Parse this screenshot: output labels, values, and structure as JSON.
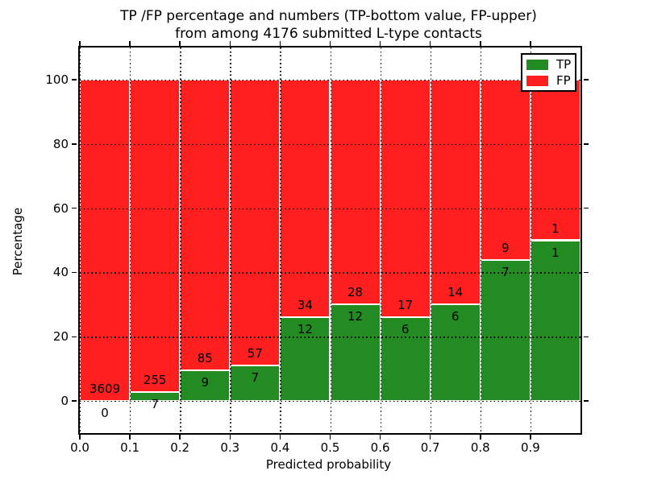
{
  "title": {
    "line1": "TP /FP percentage and numbers (TP-bottom value, FP-upper)",
    "line2": "from among 4176 submitted L-type contacts"
  },
  "chart_data": {
    "type": "bar",
    "stacked": true,
    "normalized": "each bin scaled to 100%, TP on bottom, FP on top",
    "title": "TP /FP percentage and numbers (TP-bottom value, FP-upper) from among 4176 submitted L-type contacts",
    "xlabel": "Predicted probability",
    "ylabel": "Percentage",
    "bin_edges": [
      0.0,
      0.1,
      0.2,
      0.3,
      0.4,
      0.5,
      0.6,
      0.7,
      0.8,
      0.9,
      1.0
    ],
    "xtick_labels": [
      "0.0",
      "0.1",
      "0.2",
      "0.3",
      "0.4",
      "0.5",
      "0.6",
      "0.7",
      "0.8",
      "0.9"
    ],
    "ytick_labels": [
      "0",
      "20",
      "40",
      "60",
      "80",
      "100"
    ],
    "ytick_values": [
      0,
      20,
      40,
      60,
      80,
      100
    ],
    "xlim": [
      0.0,
      1.0
    ],
    "ylim": [
      -10,
      110
    ],
    "grid": {
      "style": "dotted",
      "color": "#000000",
      "above_bars": true
    },
    "legend": {
      "position": "upper right",
      "entries": [
        "TP",
        "FP"
      ]
    },
    "series": [
      {
        "name": "TP",
        "color": "#228b22",
        "counts": [
          0,
          7,
          9,
          7,
          12,
          12,
          6,
          6,
          7,
          1
        ]
      },
      {
        "name": "FP",
        "color": "#ff1f1f",
        "counts": [
          3609,
          255,
          85,
          57,
          34,
          28,
          17,
          14,
          9,
          1
        ]
      }
    ],
    "tp_percent_per_bin": [
      0.0,
      2.67,
      9.57,
      10.94,
      26.09,
      30.0,
      26.09,
      30.0,
      43.75,
      50.0
    ],
    "total_contacts": 4176
  },
  "colors": {
    "tp_green": "#228b22",
    "fp_red": "#ff1f1f",
    "grid_black": "#000000",
    "background": "#ffffff",
    "bar_edge": "#ffffff"
  }
}
